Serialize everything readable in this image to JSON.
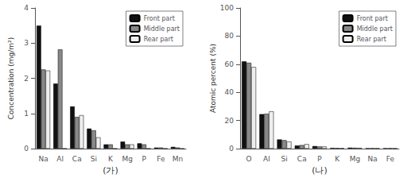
{
  "chart_data": [
    {
      "type": "bar",
      "categories": [
        "Na",
        "Al",
        "Ca",
        "Si",
        "K",
        "Mg",
        "P",
        "Fe",
        "Mn"
      ],
      "series": [
        {
          "name": "Front part",
          "color": "#111111",
          "values": [
            3.5,
            1.85,
            1.2,
            0.57,
            0.12,
            0.2,
            0.15,
            0.03,
            0.05
          ]
        },
        {
          "name": "Middle part",
          "color": "#888888",
          "values": [
            2.25,
            2.82,
            0.9,
            0.52,
            0.12,
            0.12,
            0.12,
            0.03,
            0.03
          ]
        },
        {
          "name": "Rear part",
          "color": "#eeeeee",
          "values": [
            2.22,
            0.0,
            0.95,
            0.32,
            0.0,
            0.12,
            0.0,
            0.0,
            0.0
          ]
        }
      ],
      "ylabel": "Concentration (mg/m²)",
      "xlabel": "(가)",
      "ylim": [
        0,
        4
      ],
      "yticks": [
        0,
        1,
        2,
        3,
        4
      ],
      "grid": false,
      "legend": "upper right"
    },
    {
      "type": "bar",
      "categories": [
        "O",
        "Al",
        "Si",
        "Ca",
        "P",
        "K",
        "Mg",
        "Na",
        "Fe"
      ],
      "series": [
        {
          "name": "Front part",
          "color": "#111111",
          "values": [
            62,
            24.5,
            6.5,
            2.2,
            1.8,
            0.5,
            0.7,
            0.3,
            0.3
          ]
        },
        {
          "name": "Middle part",
          "color": "#888888",
          "values": [
            61,
            24.8,
            6.0,
            2.5,
            1.5,
            0.4,
            0.6,
            0.3,
            0.3
          ]
        },
        {
          "name": "Rear part",
          "color": "#eeeeee",
          "values": [
            58,
            26.5,
            5.0,
            3.2,
            1.5,
            0.3,
            0.5,
            0.2,
            0.2
          ]
        }
      ],
      "ylabel": "Atomic percent (%)",
      "xlabel": "(나)",
      "ylim": [
        0,
        100
      ],
      "yticks": [
        0,
        20,
        40,
        60,
        80,
        100
      ],
      "grid": false,
      "legend": "upper right"
    }
  ]
}
